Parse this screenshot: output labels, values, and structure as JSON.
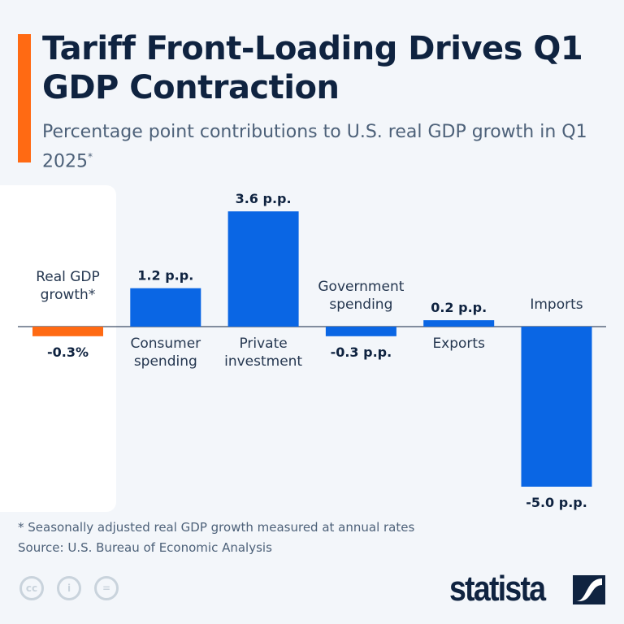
{
  "title": "Tariff Front-Loading Drives Q1 GDP Contraction",
  "subtitle": "Percentage point contributions to U.S. real GDP growth in Q1 2025",
  "subtitle_mark": "*",
  "footnote": "* Seasonally adjusted real GDP growth measured at annual rates",
  "source": "Source: U.S. Bureau of Economic Analysis",
  "brand": "statista",
  "license_icons": [
    "cc-icon",
    "attribution-icon",
    "no-derivatives-icon"
  ],
  "colors": {
    "accent": "#ff6a13",
    "bar": "#0a66e4",
    "total": "#ff6a13",
    "text": "#0f2340"
  },
  "chart_data": {
    "type": "bar",
    "categories": [
      "Real GDP growth*",
      "Consumer spending",
      "Private investment",
      "Government spending",
      "Exports",
      "Imports"
    ],
    "values": [
      -0.3,
      1.2,
      3.6,
      -0.3,
      0.2,
      -5.0
    ],
    "data_labels": [
      "-0.3%",
      "1.2 p.p.",
      "3.6 p.p.",
      "-0.3 p.p.",
      "0.2 p.p.",
      "-5.0 p.p."
    ],
    "unit": "p.p.",
    "grid": false,
    "legend": "none"
  }
}
